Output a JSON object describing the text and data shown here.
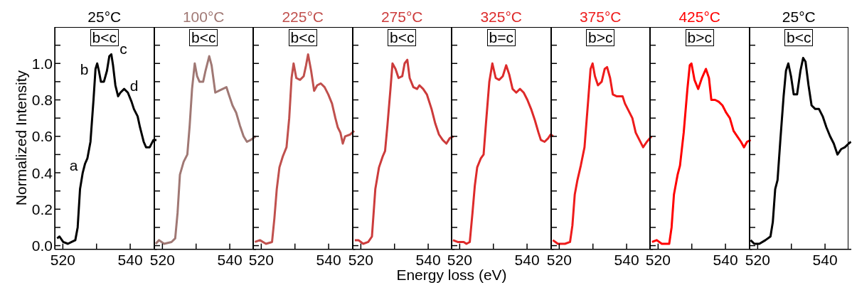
{
  "chart_data": [
    {
      "type": "line",
      "title": "25°C",
      "ylabel": "Normalized Intensity",
      "xlim": [
        517.6,
        547.9
      ],
      "ylim": [
        -0.02,
        1.2
      ],
      "xticks": [
        {
          "value": 520,
          "label": "520"
        },
        {
          "value": 530,
          "label": null
        },
        {
          "value": 540,
          "label": "540"
        }
      ],
      "yticks": [
        {
          "value": 0,
          "label": "0.0"
        },
        {
          "value": 0.1,
          "label": null
        },
        {
          "value": 0.2,
          "label": "0.2"
        },
        {
          "value": 0.3,
          "label": null
        },
        {
          "value": 0.4,
          "label": "0.4"
        },
        {
          "value": 0.5,
          "label": null
        },
        {
          "value": 0.6,
          "label": "0.6"
        },
        {
          "value": 0.7,
          "label": null
        },
        {
          "value": 0.8,
          "label": "0.8"
        },
        {
          "value": 0.9,
          "label": null
        },
        {
          "value": 1.0,
          "label": "1.0"
        },
        {
          "value": 1.1,
          "label": null
        }
      ],
      "annotations": [
        "b<c",
        {
          "text": "a",
          "x": 526.6,
          "y": 0.45
        },
        {
          "text": "b",
          "x": 530.2,
          "y": 1.0
        },
        {
          "text": "c",
          "x": 534.4,
          "y": 1.05
        },
        {
          "text": "d",
          "x": 538.2,
          "y": 0.86
        }
      ],
      "series": [
        {
          "color": "#000000",
          "x": [
            518.3,
            519.0,
            520.1,
            521.5,
            522.6,
            523.7,
            524.4,
            525.1,
            525.9,
            526.6,
            527.3,
            528.2,
            529.1,
            529.7,
            530.2,
            530.7,
            531.3,
            532.2,
            533.1,
            533.8,
            534.4,
            534.9,
            535.6,
            536.4,
            537.1,
            538.2,
            539.3,
            540.4,
            541.1,
            542.2,
            542.9,
            544.0,
            544.7,
            545.8,
            546.9,
            547.8
          ],
          "values": [
            0.04,
            0.05,
            0.02,
            0.01,
            0.02,
            0.03,
            0.1,
            0.31,
            0.4,
            0.45,
            0.48,
            0.57,
            0.8,
            0.97,
            1.0,
            0.96,
            0.9,
            0.9,
            0.96,
            1.04,
            1.05,
            0.99,
            0.88,
            0.82,
            0.84,
            0.86,
            0.84,
            0.79,
            0.75,
            0.71,
            0.65,
            0.57,
            0.54,
            0.54,
            0.58,
            0.58
          ]
        }
      ]
    },
    {
      "type": "line",
      "title": "100°C",
      "tick_labels": "x",
      "xlim": [
        517.6,
        547.9
      ],
      "ylim": [
        -0.02,
        1.2
      ],
      "xticks": [
        {
          "value": 520,
          "label": "520"
        },
        {
          "value": 530,
          "label": null
        },
        {
          "value": 540,
          "label": "540"
        }
      ],
      "yticks": [
        {
          "value": 0,
          "label": null
        },
        {
          "value": 0.1,
          "label": null
        },
        {
          "value": 0.2,
          "label": null
        },
        {
          "value": 0.3,
          "label": null
        },
        {
          "value": 0.4,
          "label": null
        },
        {
          "value": 0.5,
          "label": null
        },
        {
          "value": 0.6,
          "label": null
        },
        {
          "value": 0.7,
          "label": null
        },
        {
          "value": 0.8,
          "label": null
        },
        {
          "value": 0.9,
          "label": null
        },
        {
          "value": 1.0,
          "label": null
        },
        {
          "value": 1.1,
          "label": null
        }
      ],
      "annotations": [
        "b<c"
      ],
      "series": [
        {
          "color": "#a07874",
          "x": [
            518.0,
            519.0,
            520.5,
            522.7,
            523.8,
            524.5,
            525.2,
            526.3,
            527.4,
            528.1,
            528.8,
            529.6,
            530.3,
            531.0,
            532.1,
            532.8,
            533.9,
            534.6,
            535.7,
            536.8,
            537.9,
            539.0,
            539.7,
            540.8,
            541.9,
            543.0,
            544.1,
            545.1,
            546.2,
            547.7
          ],
          "values": [
            0.01,
            0.03,
            0.01,
            0.02,
            0.04,
            0.18,
            0.39,
            0.46,
            0.5,
            0.66,
            0.86,
            1.0,
            0.93,
            0.9,
            0.9,
            0.96,
            1.04,
            0.99,
            0.84,
            0.85,
            0.86,
            0.87,
            0.83,
            0.77,
            0.73,
            0.66,
            0.6,
            0.57,
            0.58,
            0.6
          ]
        }
      ]
    },
    {
      "type": "line",
      "title": "225°C",
      "tick_labels": "x",
      "xlim": [
        517.6,
        547.9
      ],
      "ylim": [
        -0.02,
        1.2
      ],
      "xticks": [
        {
          "value": 520,
          "label": "520"
        },
        {
          "value": 530,
          "label": null
        },
        {
          "value": 540,
          "label": "540"
        }
      ],
      "yticks": [
        {
          "value": 0,
          "label": null
        },
        {
          "value": 0.1,
          "label": null
        },
        {
          "value": 0.2,
          "label": null
        },
        {
          "value": 0.3,
          "label": null
        },
        {
          "value": 0.4,
          "label": null
        },
        {
          "value": 0.5,
          "label": null
        },
        {
          "value": 0.6,
          "label": null
        },
        {
          "value": 0.7,
          "label": null
        },
        {
          "value": 0.8,
          "label": null
        },
        {
          "value": 0.9,
          "label": null
        },
        {
          "value": 1.0,
          "label": null
        },
        {
          "value": 1.1,
          "label": null
        }
      ],
      "annotations": [
        "b<c"
      ],
      "series": [
        {
          "color": "#c0504d",
          "x": [
            518.1,
            519.6,
            521.4,
            523.2,
            523.9,
            524.6,
            525.4,
            526.4,
            527.5,
            528.3,
            529.0,
            529.6,
            530.4,
            531.5,
            532.6,
            533.3,
            533.9,
            534.8,
            535.7,
            536.6,
            537.7,
            538.8,
            539.9,
            541.0,
            542.0,
            542.7,
            543.5,
            544.2,
            544.9,
            546.4,
            547.6
          ],
          "values": [
            0.02,
            0.03,
            0.01,
            0.02,
            0.15,
            0.31,
            0.43,
            0.49,
            0.54,
            0.7,
            0.92,
            1.0,
            0.92,
            0.91,
            0.93,
            0.99,
            1.05,
            0.96,
            0.85,
            0.88,
            0.89,
            0.87,
            0.83,
            0.78,
            0.7,
            0.65,
            0.62,
            0.56,
            0.6,
            0.61,
            0.63
          ]
        }
      ]
    },
    {
      "type": "line",
      "title": "275°C",
      "xlabel": "Energy loss (eV)",
      "tick_labels": "x",
      "xlim": [
        517.6,
        547.9
      ],
      "ylim": [
        -0.02,
        1.2
      ],
      "xticks": [
        {
          "value": 520,
          "label": "520"
        },
        {
          "value": 530,
          "label": null
        },
        {
          "value": 540,
          "label": "540"
        }
      ],
      "yticks": [
        {
          "value": 0,
          "label": null
        },
        {
          "value": 0.1,
          "label": null
        },
        {
          "value": 0.2,
          "label": null
        },
        {
          "value": 0.3,
          "label": null
        },
        {
          "value": 0.4,
          "label": null
        },
        {
          "value": 0.5,
          "label": null
        },
        {
          "value": 0.6,
          "label": null
        },
        {
          "value": 0.7,
          "label": null
        },
        {
          "value": 0.8,
          "label": null
        },
        {
          "value": 0.9,
          "label": null
        },
        {
          "value": 1.0,
          "label": null
        },
        {
          "value": 1.1,
          "label": null
        }
      ],
      "annotations": [
        "b<c"
      ],
      "series": [
        {
          "color": "#cc3b3b",
          "x": [
            518.2,
            519.3,
            520.7,
            522.2,
            523.3,
            524.3,
            525.4,
            526.5,
            527.2,
            527.9,
            528.8,
            529.4,
            530.3,
            531.2,
            532.3,
            533.0,
            533.8,
            534.5,
            535.6,
            536.7,
            537.4,
            538.5,
            539.6,
            541.0,
            542.1,
            543.2,
            544.3,
            545.4,
            546.4,
            547.5
          ],
          "values": [
            0.03,
            0.03,
            0.01,
            0.02,
            0.05,
            0.31,
            0.43,
            0.49,
            0.52,
            0.66,
            0.86,
            1.0,
            0.97,
            0.92,
            0.93,
            1.0,
            1.02,
            0.92,
            0.87,
            0.86,
            0.88,
            0.86,
            0.83,
            0.75,
            0.67,
            0.61,
            0.58,
            0.56,
            0.59,
            0.6
          ]
        }
      ]
    },
    {
      "type": "line",
      "title": "325°C",
      "tick_labels": "x",
      "xlim": [
        517.6,
        547.9
      ],
      "ylim": [
        -0.02,
        1.2
      ],
      "xticks": [
        {
          "value": 520,
          "label": "520"
        },
        {
          "value": 530,
          "label": null
        },
        {
          "value": 540,
          "label": "540"
        }
      ],
      "yticks": [
        {
          "value": 0,
          "label": null
        },
        {
          "value": 0.1,
          "label": null
        },
        {
          "value": 0.2,
          "label": null
        },
        {
          "value": 0.3,
          "label": null
        },
        {
          "value": 0.4,
          "label": null
        },
        {
          "value": 0.5,
          "label": null
        },
        {
          "value": 0.6,
          "label": null
        },
        {
          "value": 0.7,
          "label": null
        },
        {
          "value": 0.8,
          "label": null
        },
        {
          "value": 0.9,
          "label": null
        },
        {
          "value": 1.0,
          "label": null
        },
        {
          "value": 1.1,
          "label": null
        }
      ],
      "annotations": [
        "b=c"
      ],
      "series": [
        {
          "color": "#dd2a2a",
          "x": [
            518.0,
            519.4,
            521.2,
            522.0,
            523.0,
            523.8,
            524.5,
            525.2,
            526.3,
            527.1,
            527.8,
            528.8,
            529.7,
            530.7,
            531.7,
            532.8,
            533.8,
            534.7,
            535.7,
            536.8,
            537.9,
            539.0,
            540.1,
            541.2,
            542.3,
            543.4,
            544.1,
            545.2,
            546.3,
            547.0,
            547.8
          ],
          "values": [
            0.03,
            0.02,
            0.02,
            0.01,
            0.02,
            0.18,
            0.33,
            0.43,
            0.48,
            0.5,
            0.67,
            0.9,
            1.0,
            0.92,
            0.91,
            0.93,
            0.99,
            0.94,
            0.86,
            0.84,
            0.86,
            0.84,
            0.8,
            0.75,
            0.69,
            0.62,
            0.58,
            0.57,
            0.59,
            0.61,
            0.6
          ]
        }
      ]
    },
    {
      "type": "line",
      "title": "375°C",
      "tick_labels": "x",
      "xlim": [
        517.6,
        547.9
      ],
      "ylim": [
        -0.02,
        1.2
      ],
      "xticks": [
        {
          "value": 520,
          "label": "520"
        },
        {
          "value": 530,
          "label": null
        },
        {
          "value": 540,
          "label": "540"
        }
      ],
      "yticks": [
        {
          "value": 0,
          "label": null
        },
        {
          "value": 0.1,
          "label": null
        },
        {
          "value": 0.2,
          "label": null
        },
        {
          "value": 0.3,
          "label": null
        },
        {
          "value": 0.4,
          "label": null
        },
        {
          "value": 0.5,
          "label": null
        },
        {
          "value": 0.6,
          "label": null
        },
        {
          "value": 0.7,
          "label": null
        },
        {
          "value": 0.8,
          "label": null
        },
        {
          "value": 0.9,
          "label": null
        },
        {
          "value": 1.0,
          "label": null
        },
        {
          "value": 1.1,
          "label": null
        }
      ],
      "annotations": [
        "b>c"
      ],
      "series": [
        {
          "color": "#ee1b1b",
          "x": [
            518.1,
            519.6,
            521.7,
            523.2,
            523.9,
            524.6,
            525.4,
            526.4,
            527.5,
            528.6,
            529.3,
            529.9,
            530.6,
            531.5,
            532.6,
            533.5,
            534.2,
            535.1,
            535.9,
            537.0,
            538.0,
            538.8,
            539.5,
            540.6,
            541.7,
            542.7,
            543.8,
            544.9,
            546.0,
            547.4
          ],
          "values": [
            0.03,
            0.01,
            0.01,
            0.02,
            0.11,
            0.28,
            0.36,
            0.44,
            0.54,
            0.8,
            0.97,
            1.0,
            0.93,
            0.88,
            0.9,
            0.97,
            0.98,
            0.92,
            0.83,
            0.82,
            0.82,
            0.82,
            0.78,
            0.74,
            0.7,
            0.62,
            0.58,
            0.54,
            0.57,
            0.6
          ]
        }
      ]
    },
    {
      "type": "line",
      "title": "425°C",
      "tick_labels": "x",
      "xlim": [
        517.6,
        547.9
      ],
      "ylim": [
        -0.02,
        1.2
      ],
      "xticks": [
        {
          "value": 520,
          "label": "520"
        },
        {
          "value": 530,
          "label": null
        },
        {
          "value": 540,
          "label": "540"
        }
      ],
      "yticks": [
        {
          "value": 0,
          "label": null
        },
        {
          "value": 0.1,
          "label": null
        },
        {
          "value": 0.2,
          "label": null
        },
        {
          "value": 0.3,
          "label": null
        },
        {
          "value": 0.4,
          "label": null
        },
        {
          "value": 0.5,
          "label": null
        },
        {
          "value": 0.6,
          "label": null
        },
        {
          "value": 0.7,
          "label": null
        },
        {
          "value": 0.8,
          "label": null
        },
        {
          "value": 0.9,
          "label": null
        },
        {
          "value": 1.0,
          "label": null
        },
        {
          "value": 1.1,
          "label": null
        }
      ],
      "annotations": [
        "b>c"
      ],
      "series": [
        {
          "color": "#ff0000",
          "x": [
            518.2,
            519.6,
            521.1,
            523.3,
            524.0,
            524.7,
            525.8,
            526.5,
            527.6,
            528.7,
            529.4,
            529.9,
            530.8,
            531.9,
            533.0,
            534.2,
            535.1,
            535.8,
            536.9,
            538.0,
            539.1,
            540.2,
            541.3,
            542.4,
            543.5,
            544.6,
            545.5,
            546.4,
            547.5
          ],
          "values": [
            0.02,
            0.03,
            0.01,
            0.01,
            0.1,
            0.28,
            0.39,
            0.44,
            0.62,
            0.86,
            0.99,
            1.0,
            0.91,
            0.86,
            0.92,
            0.97,
            0.92,
            0.8,
            0.8,
            0.79,
            0.77,
            0.73,
            0.7,
            0.63,
            0.6,
            0.57,
            0.54,
            0.57,
            0.58
          ]
        }
      ]
    },
    {
      "type": "line",
      "title": "25°C",
      "tick_labels": "x",
      "xlim": [
        517.6,
        547.9
      ],
      "ylim": [
        -0.02,
        1.2
      ],
      "xticks": [
        {
          "value": 520,
          "label": "520"
        },
        {
          "value": 530,
          "label": null
        },
        {
          "value": 540,
          "label": "540"
        }
      ],
      "yticks": [
        {
          "value": 0,
          "label": null
        },
        {
          "value": 0.1,
          "label": null
        },
        {
          "value": 0.2,
          "label": null
        },
        {
          "value": 0.3,
          "label": null
        },
        {
          "value": 0.4,
          "label": null
        },
        {
          "value": 0.5,
          "label": null
        },
        {
          "value": 0.6,
          "label": null
        },
        {
          "value": 0.7,
          "label": null
        },
        {
          "value": 0.8,
          "label": null
        },
        {
          "value": 0.9,
          "label": null
        },
        {
          "value": 1.0,
          "label": null
        },
        {
          "value": 1.1,
          "label": null
        }
      ],
      "annotations": [
        "b<c"
      ],
      "series": [
        {
          "color": "#000000",
          "x": [
            517.9,
            519.0,
            520.5,
            522.3,
            523.8,
            524.5,
            525.2,
            525.9,
            526.7,
            527.7,
            528.4,
            529.1,
            529.9,
            530.7,
            531.7,
            532.7,
            533.5,
            534.2,
            535.1,
            536.0,
            537.1,
            538.2,
            539.3,
            540.4,
            541.5,
            542.6,
            543.7,
            544.8,
            545.9,
            547.0,
            547.7
          ],
          "values": [
            0.03,
            0.01,
            0.01,
            0.03,
            0.05,
            0.13,
            0.31,
            0.36,
            0.57,
            0.82,
            0.96,
            1.0,
            0.93,
            0.83,
            0.83,
            0.96,
            1.03,
            1.01,
            0.88,
            0.77,
            0.75,
            0.75,
            0.71,
            0.65,
            0.6,
            0.56,
            0.5,
            0.53,
            0.54,
            0.56,
            0.57
          ]
        }
      ]
    }
  ]
}
